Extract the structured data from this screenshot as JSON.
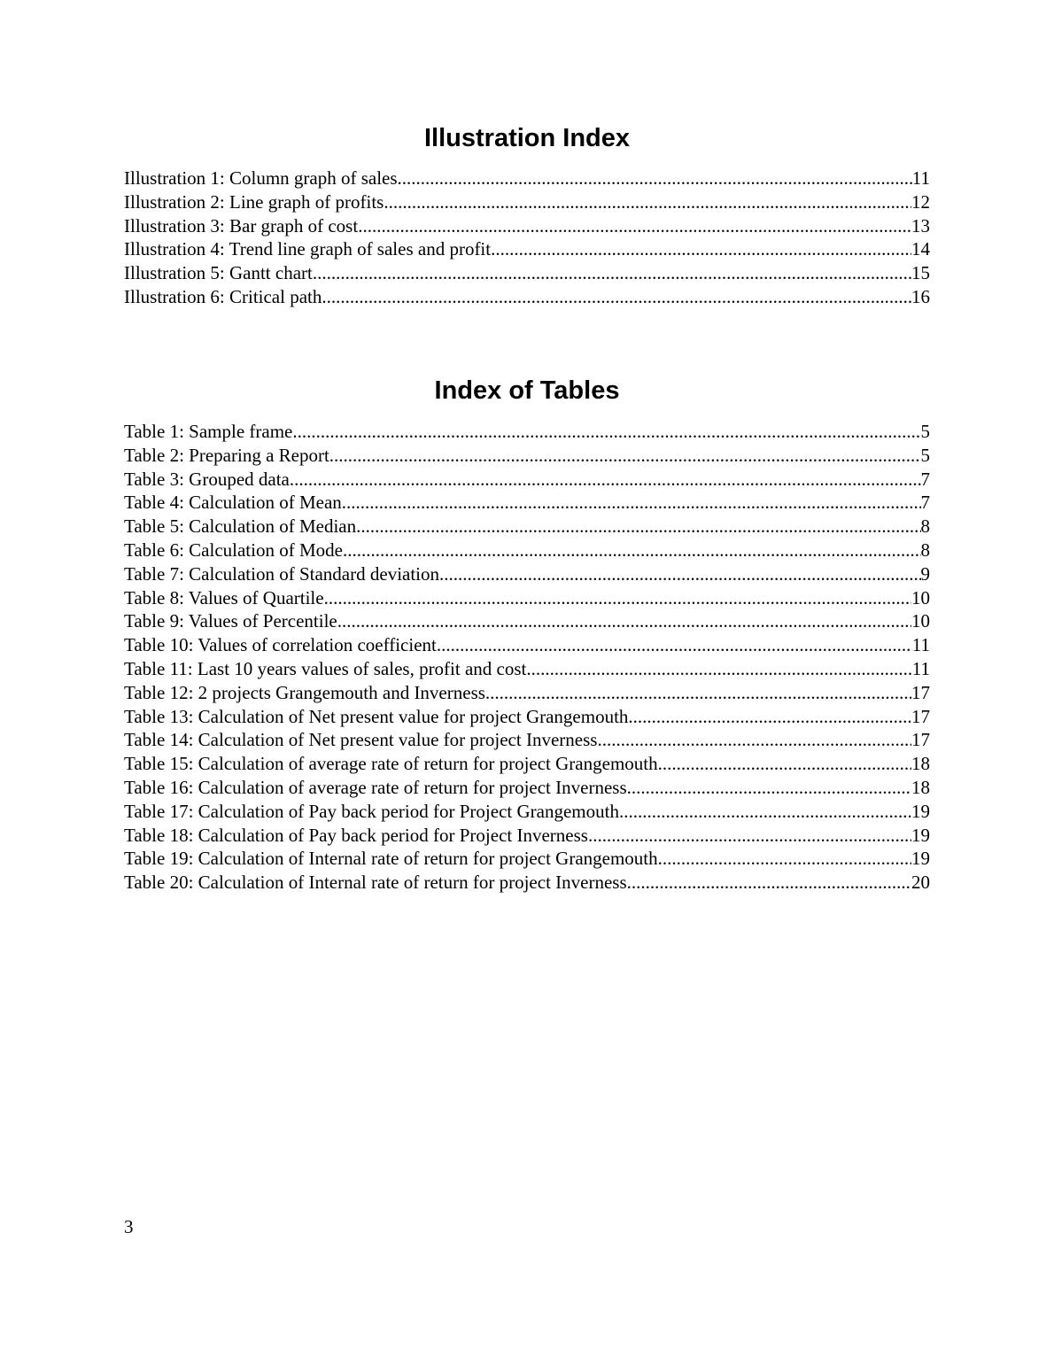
{
  "illustration_index": {
    "title": "Illustration Index",
    "entries": [
      {
        "label": "Illustration 1: Column graph of sales",
        "page": "11"
      },
      {
        "label": "Illustration 2: Line graph of profits",
        "page": "12"
      },
      {
        "label": "Illustration 3: Bar graph of cost",
        "page": "13"
      },
      {
        "label": "Illustration 4: Trend line graph of sales and profit",
        "page": "14"
      },
      {
        "label": "Illustration 5: Gantt chart",
        "page": "15"
      },
      {
        "label": "Illustration 6: Critical path",
        "page": "16"
      }
    ]
  },
  "table_index": {
    "title": "Index of Tables",
    "entries": [
      {
        "label": "Table 1: Sample frame",
        "page": "5"
      },
      {
        "label": "Table 2: Preparing a Report",
        "page": "5"
      },
      {
        "label": "Table 3: Grouped data",
        "page": "7"
      },
      {
        "label": "Table 4: Calculation of Mean",
        "page": "7"
      },
      {
        "label": "Table 5: Calculation of Median",
        "page": "8"
      },
      {
        "label": "Table 6: Calculation of Mode",
        "page": "8"
      },
      {
        "label": "Table 7: Calculation of Standard deviation",
        "page": "9"
      },
      {
        "label": "Table 8: Values of Quartile",
        "page": "10"
      },
      {
        "label": "Table 9: Values of Percentile",
        "page": "10"
      },
      {
        "label": "Table 10: Values of correlation coefficient",
        "page": "11"
      },
      {
        "label": "Table 11: Last 10 years values of sales, profit and cost",
        "page": "11"
      },
      {
        "label": "Table 12: 2 projects Grangemouth and Inverness",
        "page": "17"
      },
      {
        "label": "Table 13: Calculation of Net present value for project Grangemouth",
        "page": "17"
      },
      {
        "label": "Table 14: Calculation of Net present value for project Inverness",
        "page": "17"
      },
      {
        "label": "Table 15: Calculation of average rate of return for project Grangemouth",
        "page": "18"
      },
      {
        "label": "Table 16: Calculation of average rate of return for project Inverness",
        "page": "18"
      },
      {
        "label": "Table 17: Calculation of Pay back period for Project Grangemouth",
        "page": "19"
      },
      {
        "label": "Table 18: Calculation of Pay back period for Project Inverness",
        "page": "19"
      },
      {
        "label": "Table 19: Calculation of Internal rate of return for project Grangemouth",
        "page": "19"
      },
      {
        "label": "Table 20: Calculation of Internal rate of return for project Inverness",
        "page": "20"
      }
    ]
  },
  "page_number": "3"
}
